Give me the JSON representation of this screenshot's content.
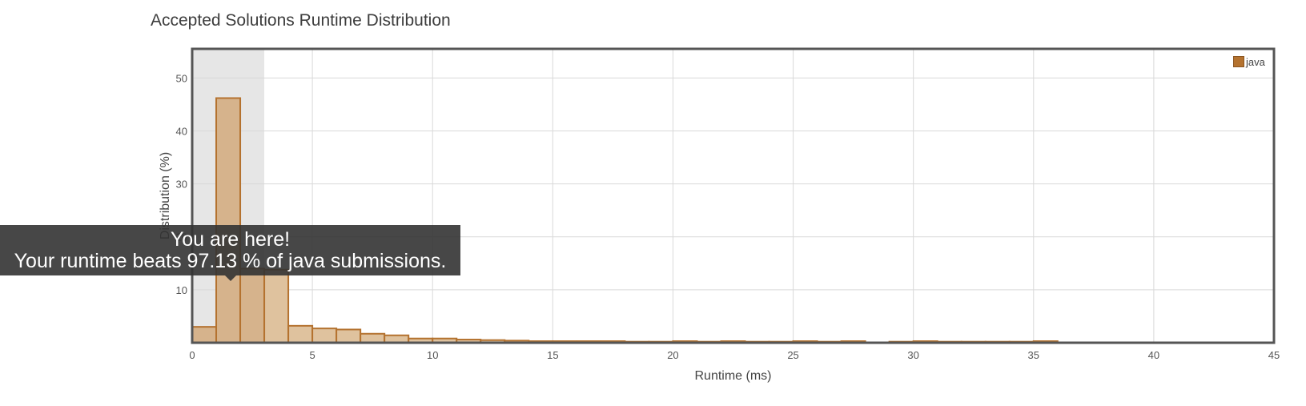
{
  "title": "Accepted Solutions Runtime Distribution",
  "tooltip": {
    "line1": "You are here!",
    "line2": "Your runtime beats 97.13 % of java submissions."
  },
  "colors": {
    "bar_fill": "#dfc29e",
    "bar_fill_highlight": "#d6b38c",
    "bar_stroke": "#b4722f",
    "highlight_band": "#e6e6e6",
    "grid": "#d9d9d9",
    "frame": "#555555"
  },
  "chart_data": {
    "type": "bar",
    "title": "Accepted Solutions Runtime Distribution",
    "xlabel": "Runtime (ms)",
    "ylabel": "Distribution (%)",
    "xlim": [
      0,
      45
    ],
    "ylim": [
      0,
      55.5
    ],
    "xticks": [
      0,
      5,
      10,
      15,
      20,
      25,
      30,
      35,
      40,
      45
    ],
    "yticks": [
      10,
      20,
      30,
      40,
      50
    ],
    "grid": true,
    "legend": {
      "position": "top-right",
      "entries": [
        "java"
      ]
    },
    "highlight_range": [
      0,
      3
    ],
    "bin_width": 1,
    "series": [
      {
        "name": "java",
        "x": [
          0,
          1,
          2,
          3,
          4,
          5,
          6,
          7,
          8,
          9,
          10,
          11,
          12,
          13,
          14,
          15,
          16,
          17,
          18,
          19,
          20,
          21,
          22,
          23,
          24,
          25,
          26,
          27,
          28,
          29,
          30,
          31,
          32,
          33,
          34,
          35
        ],
        "values": [
          3.0,
          46.2,
          14.0,
          13.8,
          3.2,
          2.7,
          2.5,
          1.7,
          1.4,
          0.8,
          0.8,
          0.6,
          0.5,
          0.4,
          0.3,
          0.3,
          0.3,
          0.3,
          0.2,
          0.2,
          0.3,
          0.2,
          0.3,
          0.2,
          0.2,
          0.3,
          0.2,
          0.3,
          0.0,
          0.2,
          0.3,
          0.2,
          0.2,
          0.2,
          0.2,
          0.3
        ]
      }
    ]
  }
}
